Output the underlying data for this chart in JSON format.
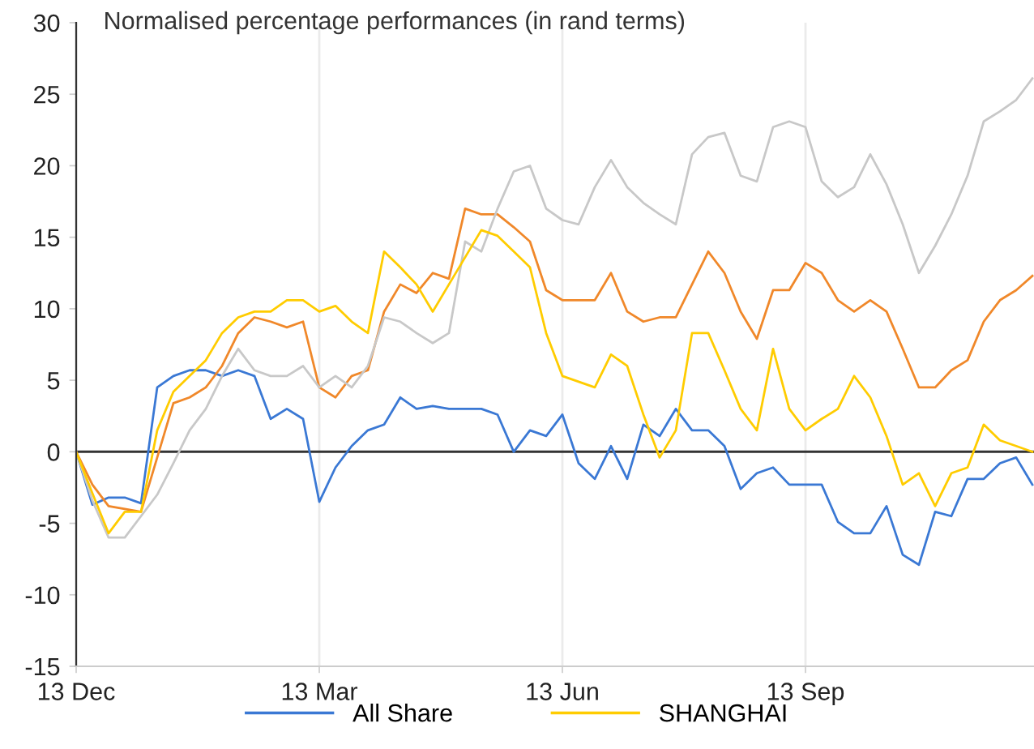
{
  "chart_data": {
    "type": "line",
    "title": "Normalised percentage performances (in rand terms)",
    "categories": [
      "13 Dec",
      null,
      null,
      null,
      null,
      null,
      null,
      null,
      null,
      null,
      null,
      null,
      null,
      null,
      null,
      "13 Mar",
      null,
      null,
      null,
      null,
      null,
      null,
      null,
      null,
      null,
      null,
      null,
      null,
      null,
      null,
      "13 Jun",
      null,
      null,
      null,
      null,
      null,
      null,
      null,
      null,
      null,
      null,
      null,
      null,
      null,
      null,
      "13 Sep",
      null,
      null,
      null,
      null,
      null,
      null,
      null,
      null,
      null,
      null,
      null,
      null,
      null,
      null
    ],
    "series": [
      {
        "name": "All Share",
        "color": "#3a78d4",
        "values": [
          0,
          -3.7,
          -3.2,
          -3.2,
          -3.6,
          4.5,
          5.3,
          5.7,
          5.7,
          5.3,
          5.7,
          5.3,
          2.3,
          3.0,
          2.3,
          -3.5,
          -1.1,
          0.4,
          1.5,
          1.9,
          3.8,
          3.0,
          3.2,
          3.0,
          3.0,
          3.0,
          2.6,
          0,
          1.5,
          1.1,
          2.6,
          -0.8,
          -1.9,
          0.4,
          -1.9,
          1.9,
          1.1,
          3.0,
          1.5,
          1.5,
          0.4,
          -2.6,
          -1.5,
          -1.1,
          -2.3,
          -2.3,
          -2.3,
          -4.9,
          -5.7,
          -5.7,
          -3.8,
          -7.2,
          -7.9,
          -4.2,
          -4.5,
          -1.9,
          -1.9,
          -0.8,
          -0.4,
          -2.3
        ]
      },
      {
        "name": null,
        "color": "#f0882a",
        "values": [
          0,
          -2.3,
          -3.8,
          -4.0,
          -4.2,
          -0.4,
          3.4,
          3.8,
          4.5,
          6.0,
          8.3,
          9.4,
          9.1,
          8.7,
          9.1,
          4.5,
          3.8,
          5.3,
          5.7,
          9.8,
          11.7,
          11.1,
          12.5,
          12.1,
          17.0,
          16.6,
          16.6,
          15.7,
          14.7,
          11.3,
          10.6,
          10.6,
          10.6,
          12.5,
          9.8,
          9.1,
          9.4,
          9.4,
          11.7,
          14.0,
          12.5,
          9.8,
          7.9,
          11.3,
          11.3,
          13.2,
          12.5,
          10.6,
          9.8,
          10.6,
          9.8,
          7.2,
          4.5,
          4.5,
          5.7,
          6.4,
          9.1,
          10.6,
          11.3,
          12.3
        ]
      },
      {
        "name": null,
        "color": "#c8c8c8",
        "values": [
          0,
          -3.4,
          -6.0,
          -6.0,
          -4.5,
          -3.0,
          -0.8,
          1.5,
          3.0,
          5.3,
          7.2,
          5.7,
          5.3,
          5.3,
          6.0,
          4.5,
          5.3,
          4.5,
          6.0,
          9.4,
          9.1,
          8.3,
          7.6,
          8.3,
          14.7,
          14.0,
          17.0,
          19.6,
          20.0,
          17.0,
          16.2,
          15.9,
          18.5,
          20.4,
          18.5,
          17.4,
          16.6,
          15.9,
          20.8,
          22.0,
          22.3,
          19.3,
          18.9,
          22.7,
          23.1,
          22.7,
          18.9,
          17.8,
          18.5,
          20.8,
          18.7,
          15.9,
          12.5,
          14.4,
          16.6,
          19.3,
          23.1,
          23.8,
          24.6,
          26.1
        ]
      },
      {
        "name": "SHANGHAI",
        "color": "#ffcc00",
        "values": [
          0,
          -2.9,
          -5.7,
          -4.2,
          -4.2,
          1.5,
          4.2,
          5.3,
          6.4,
          8.3,
          9.4,
          9.8,
          9.8,
          10.6,
          10.6,
          9.8,
          10.2,
          9.1,
          8.3,
          14.0,
          12.9,
          11.7,
          9.8,
          11.7,
          13.6,
          15.5,
          15.1,
          14.0,
          12.9,
          8.3,
          5.3,
          4.9,
          4.5,
          6.8,
          6.0,
          2.6,
          -0.4,
          1.5,
          8.3,
          8.3,
          5.7,
          3.0,
          1.5,
          7.2,
          3.0,
          1.5,
          2.3,
          3.0,
          5.3,
          3.8,
          1.1,
          -2.3,
          -1.5,
          -3.8,
          -1.5,
          -1.1,
          1.9,
          0.8,
          0.4,
          0
        ]
      }
    ],
    "ylim": [
      -15,
      30
    ],
    "yticks": [
      -15,
      -10,
      -5,
      0,
      5,
      10,
      15,
      20,
      25,
      30
    ],
    "ref_lines": [
      {
        "axis": "y",
        "value": 0,
        "label": null,
        "color": "#333333"
      }
    ],
    "grid": "x",
    "legend": "bottom",
    "line_style": "solid",
    "marker": "none"
  }
}
